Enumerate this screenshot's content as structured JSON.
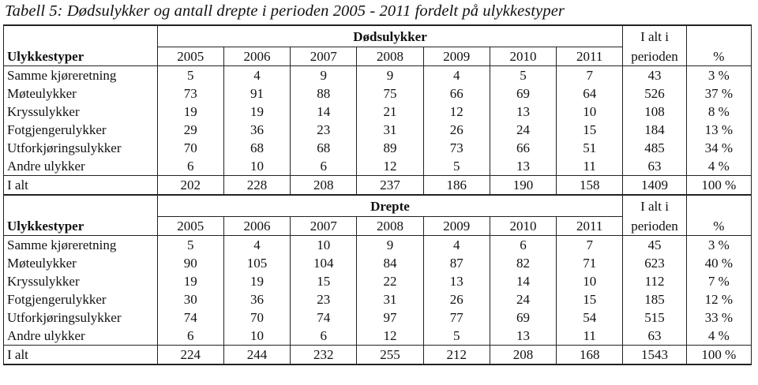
{
  "caption": "Tabell 5: Dødsulykker og antall drepte i perioden 2005 - 2011 fordelt på ulykkestyper",
  "sections": [
    {
      "title": "Dødsulykker",
      "type_header": "Ulykkestyper",
      "years": [
        "2005",
        "2006",
        "2007",
        "2008",
        "2009",
        "2010",
        "2011"
      ],
      "total_header_line1": "I alt i",
      "total_header_line2": "perioden",
      "pct_header": "%",
      "rows": [
        {
          "label": "Samme kjøreretning",
          "values": [
            "5",
            "4",
            "9",
            "9",
            "4",
            "5",
            "7"
          ],
          "total": "43",
          "pct": "3 %"
        },
        {
          "label": "Møteulykker",
          "values": [
            "73",
            "91",
            "88",
            "75",
            "66",
            "69",
            "64"
          ],
          "total": "526",
          "pct": "37 %"
        },
        {
          "label": "Kryssulykker",
          "values": [
            "19",
            "19",
            "14",
            "21",
            "12",
            "13",
            "10"
          ],
          "total": "108",
          "pct": "8 %"
        },
        {
          "label": "Fotgjengerulykker",
          "values": [
            "29",
            "36",
            "23",
            "31",
            "26",
            "24",
            "15"
          ],
          "total": "184",
          "pct": "13 %"
        },
        {
          "label": "Utforkjøringsulykker",
          "values": [
            "70",
            "68",
            "68",
            "89",
            "73",
            "66",
            "51"
          ],
          "total": "485",
          "pct": "34 %"
        },
        {
          "label": "Andre ulykker",
          "values": [
            "6",
            "10",
            "6",
            "12",
            "5",
            "13",
            "11"
          ],
          "total": "63",
          "pct": "4 %"
        }
      ],
      "total_row": {
        "label": "I alt",
        "values": [
          "202",
          "228",
          "208",
          "237",
          "186",
          "190",
          "158"
        ],
        "total": "1409",
        "pct": "100 %"
      }
    },
    {
      "title": "Drepte",
      "type_header": "Ulykkestyper",
      "years": [
        "2005",
        "2006",
        "2007",
        "2008",
        "2009",
        "2010",
        "2011"
      ],
      "total_header_line1": "I alt i",
      "total_header_line2": "perioden",
      "pct_header": "%",
      "rows": [
        {
          "label": "Samme kjøreretning",
          "values": [
            "5",
            "4",
            "10",
            "9",
            "4",
            "6",
            "7"
          ],
          "total": "45",
          "pct": "3 %"
        },
        {
          "label": "Møteulykker",
          "values": [
            "90",
            "105",
            "104",
            "84",
            "87",
            "82",
            "71"
          ],
          "total": "623",
          "pct": "40 %"
        },
        {
          "label": "Kryssulykker",
          "values": [
            "19",
            "19",
            "15",
            "22",
            "13",
            "14",
            "10"
          ],
          "total": "112",
          "pct": "7 %"
        },
        {
          "label": "Fotgjengerulykker",
          "values": [
            "30",
            "36",
            "23",
            "31",
            "26",
            "24",
            "15"
          ],
          "total": "185",
          "pct": "12 %"
        },
        {
          "label": "Utforkjøringsulykker",
          "values": [
            "74",
            "70",
            "74",
            "97",
            "77",
            "69",
            "54"
          ],
          "total": "515",
          "pct": "33 %"
        },
        {
          "label": "Andre ulykker",
          "values": [
            "6",
            "10",
            "6",
            "12",
            "5",
            "13",
            "11"
          ],
          "total": "63",
          "pct": "4 %"
        }
      ],
      "total_row": {
        "label": "I alt",
        "values": [
          "224",
          "244",
          "232",
          "255",
          "212",
          "208",
          "168"
        ],
        "total": "1543",
        "pct": "100 %"
      }
    }
  ]
}
